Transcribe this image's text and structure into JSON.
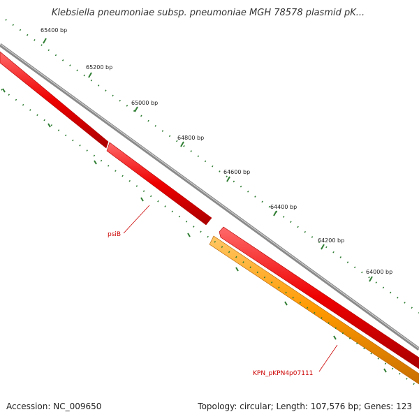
{
  "title": "Klebsiella pneumoniae subsp. pneumoniae MGH 78578 plasmid pK...",
  "footer": {
    "accession": "Accession: NC_009650",
    "summary": "Topology: circular; Length: 107,576 bp; Genes: 123"
  },
  "ticks": [
    "65400 bp",
    "65200 bp",
    "65000 bp",
    "64800 bp",
    "64600 bp",
    "64400 bp",
    "64200 bp",
    "64000 bp"
  ],
  "genes": [
    {
      "label": "psiB",
      "color": "#cc0000"
    },
    {
      "label": "KPN_pKPN4p07111",
      "color": "#cc0000"
    }
  ],
  "colors": {
    "backbone": "#8a8a8a",
    "forward_feature": "#ee0000",
    "reverse_feature": "#ff9900",
    "tick_marks": "#2e7d32",
    "label_line": "#cc0000"
  }
}
